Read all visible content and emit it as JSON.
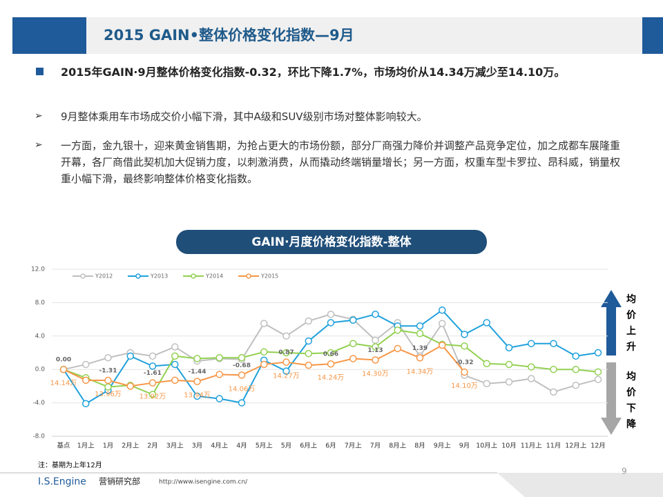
{
  "slide": {
    "title": "2015 GAIN•整体价格变化指数—9月",
    "bullets": [
      "2015年GAIN·9月整体价格变化指数-0.32，环比下降1.7%，市场均价从14.34万减少至14.10万。",
      "9月整体乘用车市场成交价小幅下滑，其中A级和SUV级别市场对整体影响较大。",
      "一方面，金九银十，迎来黄金销售期，为抢占更大的市场份额，部分厂商强力降价并调整产品竞争定位，加之成都车展隆重开幕，各厂商借此契机加大促销力度，以刺激消费，从而撬动终端销量增长；另一方面，权重车型卡罗拉、昂科威，销量权重小幅下滑，最终影响整体价格变化指数。"
    ],
    "chart_banner": "GAIN·月度价格变化指数-整体",
    "up_label": "均价上升",
    "down_label": "均价下降",
    "note": "注：基期为上年12月",
    "page_number": "9",
    "footer_brand": "I.S.Engine",
    "footer_dept": "营销研究部",
    "footer_url": "http://www.isengine.com.cn/"
  },
  "chart_data": {
    "type": "line",
    "categories": [
      "基点",
      "1月上",
      "1月",
      "2月上",
      "2月",
      "3月上",
      "3月",
      "4月上",
      "4月",
      "5月上",
      "5月",
      "6月上",
      "6月",
      "7月上",
      "7月",
      "8月上",
      "8月",
      "9月上",
      "9月",
      "10月上",
      "10月",
      "11月上",
      "11月",
      "12月上",
      "12月"
    ],
    "series": [
      {
        "name": "Y2012",
        "color": "#bfbfbf",
        "values": [
          0,
          0.6,
          1.4,
          2.0,
          1.6,
          2.7,
          1.0,
          1.3,
          1.2,
          5.5,
          4.0,
          5.8,
          6.6,
          6.0,
          3.5,
          5.6,
          1.6,
          5.5,
          -0.7,
          -1.7,
          -1.5,
          -1.1,
          -2.7,
          -1.9,
          -1.2
        ]
      },
      {
        "name": "Y2013",
        "color": "#1ea0dc",
        "values": [
          0,
          -4.1,
          -2.5,
          1.6,
          0.4,
          0.6,
          -3.2,
          -3.5,
          -4.0,
          1.1,
          -0.2,
          3.4,
          5.6,
          5.9,
          6.6,
          5.2,
          5.2,
          7.1,
          4.2,
          5.6,
          2.6,
          3.1,
          3.1,
          1.6,
          2.0
        ]
      },
      {
        "name": "Y2014",
        "color": "#92d050",
        "values": [
          0,
          -1.0,
          -2.1,
          -1.9,
          -3.0,
          1.6,
          1.3,
          1.4,
          1.4,
          2.1,
          2.0,
          1.9,
          2.0,
          3.1,
          2.7,
          4.7,
          4.3,
          3.0,
          2.8,
          0.7,
          0.6,
          0.3,
          0,
          0,
          -0.3
        ]
      },
      {
        "name": "Y2015",
        "color": "#f79646",
        "values": [
          0,
          -1.3,
          -1.31,
          -2.0,
          -1.61,
          -1.3,
          -1.44,
          -0.6,
          -0.68,
          0.6,
          0.87,
          0.5,
          0.66,
          1.3,
          1.13,
          2.5,
          1.39,
          2.9,
          -0.32,
          null,
          null,
          null,
          null,
          null,
          null
        ],
        "value_labels": [
          "0.00",
          null,
          "-1.31",
          null,
          "-1.61",
          null,
          "-1.44",
          null,
          "-0.68",
          null,
          "0.87",
          null,
          "0.66",
          null,
          "1.13",
          null,
          "1.39",
          null,
          "-0.32",
          null,
          null,
          null,
          null,
          null,
          null
        ]
      }
    ],
    "price_labels": [
      "14.14万",
      null,
      "13.96万",
      null,
      "13.92万",
      null,
      "13.94万",
      null,
      "14.06万",
      null,
      "14.27万",
      null,
      "14.24万",
      null,
      "14.30万",
      null,
      "14.34万",
      null,
      "14.10万",
      null,
      null,
      null,
      null,
      null,
      null
    ],
    "ylim": [
      -8,
      12
    ],
    "yticks": [
      {
        "value": -8,
        "label": "-8.0"
      },
      {
        "value": -4,
        "label": "-4.0"
      },
      {
        "value": 0,
        "label": "0.0"
      },
      {
        "value": 4,
        "label": "4.0"
      },
      {
        "value": 8,
        "label": "8.0"
      },
      {
        "value": 12,
        "label": "12.0"
      }
    ],
    "grid": true,
    "legend": "top-left"
  }
}
